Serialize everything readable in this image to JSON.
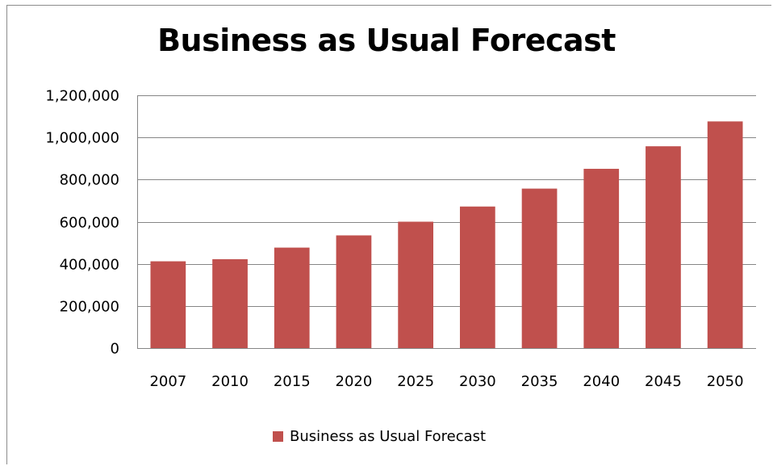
{
  "chart_data": {
    "type": "bar",
    "title": "Business as Usual Forecast",
    "xlabel": "",
    "ylabel": "",
    "categories": [
      "2007",
      "2010",
      "2015",
      "2020",
      "2025",
      "2030",
      "2035",
      "2040",
      "2045",
      "2050"
    ],
    "series": [
      {
        "name": "Business as Usual Forecast",
        "color": "#C0504D",
        "values": [
          412000,
          422000,
          477000,
          535000,
          600000,
          672000,
          757000,
          851000,
          958000,
          1076000
        ]
      }
    ],
    "ylim": [
      0,
      1200000
    ],
    "yticks": [
      "0",
      "200,000",
      "400,000",
      "600,000",
      "800,000",
      "1,000,000",
      "1,200,000"
    ],
    "yticks_values": [
      0,
      200000,
      400000,
      600000,
      800000,
      1000000,
      1200000
    ],
    "grid": true,
    "gridline_color": "#868686",
    "legend_position": "bottom"
  }
}
